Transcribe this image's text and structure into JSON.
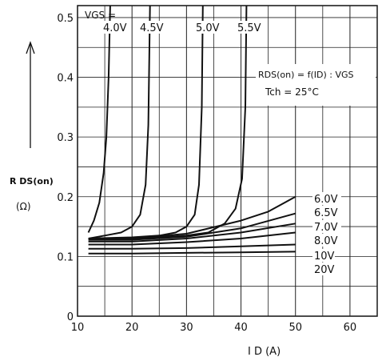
{
  "chart_data": {
    "type": "line",
    "title": "",
    "xlabel": "I D (A)",
    "ylabel_line1": "R DS(on)",
    "ylabel_line2": "(Ω)",
    "xlim": [
      10,
      65
    ],
    "ylim": [
      0,
      0.52
    ],
    "x_ticks": [
      10,
      20,
      30,
      40,
      50,
      60
    ],
    "y_ticks": [
      0,
      0.1,
      0.2,
      0.3,
      0.4,
      0.5
    ],
    "x_tick_labels": [
      "10",
      "20",
      "30",
      "40",
      "50",
      "60"
    ],
    "y_tick_labels": [
      "0",
      "0.1",
      "0.2",
      "0.3",
      "0.4",
      "0.5"
    ],
    "grid": true,
    "vgs_header": "VGS =",
    "annotation_formula": "RDS(on) = f(ID) : VGS",
    "annotation_temp": "Tch = 25°C",
    "series": [
      {
        "name": "4.0V",
        "x": [
          12,
          13,
          14,
          14.8,
          15.3,
          15.7,
          16.0
        ],
        "y": [
          0.14,
          0.16,
          0.19,
          0.24,
          0.3,
          0.4,
          0.52
        ]
      },
      {
        "name": "4.5V",
        "x": [
          12,
          15,
          18,
          20,
          21.5,
          22.5,
          23.0,
          23.3
        ],
        "y": [
          0.13,
          0.135,
          0.14,
          0.15,
          0.17,
          0.22,
          0.32,
          0.52
        ]
      },
      {
        "name": "5.0V",
        "x": [
          12,
          20,
          25,
          28,
          30,
          31.5,
          32.3,
          32.8,
          33.0
        ],
        "y": [
          0.13,
          0.132,
          0.135,
          0.14,
          0.15,
          0.17,
          0.22,
          0.35,
          0.52
        ]
      },
      {
        "name": "5.5V",
        "x": [
          12,
          20,
          25,
          30,
          34,
          37,
          39,
          40.2,
          40.8,
          41.0
        ],
        "y": [
          0.13,
          0.13,
          0.132,
          0.135,
          0.14,
          0.155,
          0.18,
          0.23,
          0.35,
          0.52
        ]
      },
      {
        "name": "6.0V",
        "x": [
          12,
          20,
          30,
          40,
          45,
          50
        ],
        "y": [
          0.13,
          0.13,
          0.138,
          0.16,
          0.175,
          0.2
        ]
      },
      {
        "name": "6.5V",
        "x": [
          12,
          20,
          30,
          40,
          50
        ],
        "y": [
          0.128,
          0.128,
          0.133,
          0.147,
          0.172
        ]
      },
      {
        "name": "7.0V",
        "x": [
          12,
          20,
          30,
          40,
          50
        ],
        "y": [
          0.125,
          0.125,
          0.13,
          0.14,
          0.155
        ]
      },
      {
        "name": "8.0V",
        "x": [
          12,
          20,
          30,
          40,
          50
        ],
        "y": [
          0.12,
          0.12,
          0.124,
          0.13,
          0.14
        ]
      },
      {
        "name": "10V",
        "x": [
          12,
          20,
          30,
          40,
          50
        ],
        "y": [
          0.113,
          0.113,
          0.114,
          0.117,
          0.12
        ]
      },
      {
        "name": "20V",
        "x": [
          12,
          20,
          30,
          40,
          50
        ],
        "y": [
          0.105,
          0.105,
          0.106,
          0.107,
          0.108
        ]
      }
    ]
  }
}
